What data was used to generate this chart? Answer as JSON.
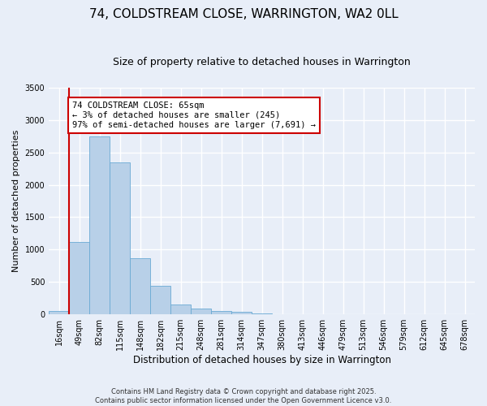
{
  "title": "74, COLDSTREAM CLOSE, WARRINGTON, WA2 0LL",
  "subtitle": "Size of property relative to detached houses in Warrington",
  "xlabel": "Distribution of detached houses by size in Warrington",
  "ylabel": "Number of detached properties",
  "footer": "Contains HM Land Registry data © Crown copyright and database right 2025.\nContains public sector information licensed under the Open Government Licence v3.0.",
  "categories": [
    "16sqm",
    "49sqm",
    "82sqm",
    "115sqm",
    "148sqm",
    "182sqm",
    "215sqm",
    "248sqm",
    "281sqm",
    "314sqm",
    "347sqm",
    "380sqm",
    "413sqm",
    "446sqm",
    "479sqm",
    "513sqm",
    "546sqm",
    "579sqm",
    "612sqm",
    "645sqm",
    "678sqm"
  ],
  "values": [
    50,
    1120,
    2750,
    2350,
    870,
    435,
    155,
    85,
    55,
    35,
    20,
    5,
    0,
    0,
    0,
    0,
    0,
    0,
    0,
    0,
    0
  ],
  "bar_color": "#b8d0e8",
  "bar_edge_color": "#6aaad4",
  "bg_color": "#e8eef8",
  "grid_color": "#ffffff",
  "vline_color": "#cc0000",
  "vline_x": 0.5,
  "annotation_text": "74 COLDSTREAM CLOSE: 65sqm\n← 3% of detached houses are smaller (245)\n97% of semi-detached houses are larger (7,691) →",
  "annotation_box_color": "#cc0000",
  "ylim": [
    0,
    3500
  ],
  "yticks": [
    0,
    500,
    1000,
    1500,
    2000,
    2500,
    3000,
    3500
  ],
  "title_fontsize": 11,
  "subtitle_fontsize": 9,
  "xlabel_fontsize": 8.5,
  "ylabel_fontsize": 8,
  "tick_fontsize": 7,
  "annotation_fontsize": 7.5,
  "footer_fontsize": 6
}
